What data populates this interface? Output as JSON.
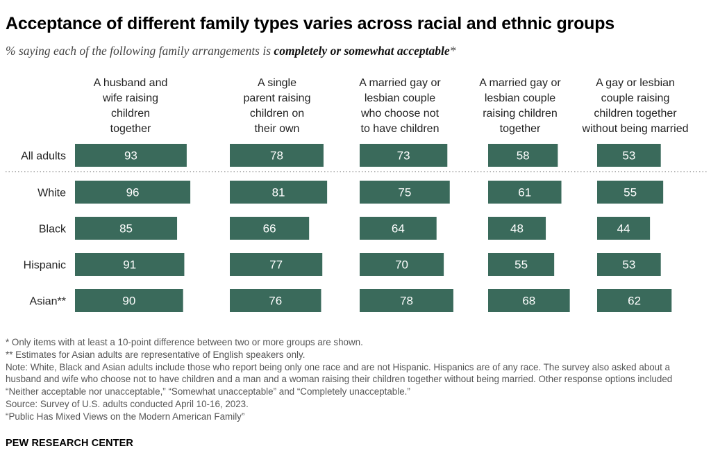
{
  "title": "Acceptance of different family types varies across racial and ethnic groups",
  "subtitle": {
    "prefix": "% saying each of the following family arrangements is ",
    "emphasis": "completely or somewhat acceptable",
    "suffix": "*"
  },
  "chart_data": {
    "type": "bar",
    "title": "Acceptance of different family types varies across racial and ethnic groups",
    "categories": [
      "All adults",
      "White",
      "Black",
      "Hispanic",
      "Asian**"
    ],
    "columns": [
      {
        "label_lines": [
          "A husband and",
          "wife raising",
          "children",
          "together"
        ],
        "values": [
          93,
          96,
          85,
          91,
          90
        ]
      },
      {
        "label_lines": [
          "A single",
          "parent raising",
          "children on",
          "their own"
        ],
        "values": [
          78,
          81,
          66,
          77,
          76
        ]
      },
      {
        "label_lines": [
          "A married gay or",
          "lesbian couple",
          "who choose not",
          "to have children"
        ],
        "values": [
          73,
          75,
          64,
          70,
          78
        ]
      },
      {
        "label_lines": [
          "A married gay or",
          "lesbian couple",
          "raising children",
          "together"
        ],
        "values": [
          58,
          61,
          48,
          55,
          68
        ]
      },
      {
        "label_lines": [
          "A gay or lesbian",
          "couple raising",
          "children together",
          "without being married"
        ],
        "values": [
          53,
          55,
          44,
          53,
          62
        ]
      }
    ],
    "xlim": [
      0,
      100
    ],
    "bar_color": "#3a6a5b"
  },
  "notes": {
    "footnote1": "* Only items with at least a 10-point difference between two or more groups are shown.",
    "footnote2": "** Estimates for Asian adults are representative of English speakers only.",
    "note": "Note: White, Black and Asian adults include those who report being only one race and are not Hispanic. Hispanics are of any race. The survey also asked about a husband and wife who choose not to have children and a man and a woman raising their children together without being married. Other response options included “Neither acceptable nor unacceptable,” “Somewhat unacceptable” and “Completely unacceptable.”",
    "source": "Source: Survey of U.S. adults conducted April 10-16, 2023.",
    "report": "“Public Has Mixed Views on the Modern American Family”"
  },
  "brand": "PEW RESEARCH CENTER"
}
